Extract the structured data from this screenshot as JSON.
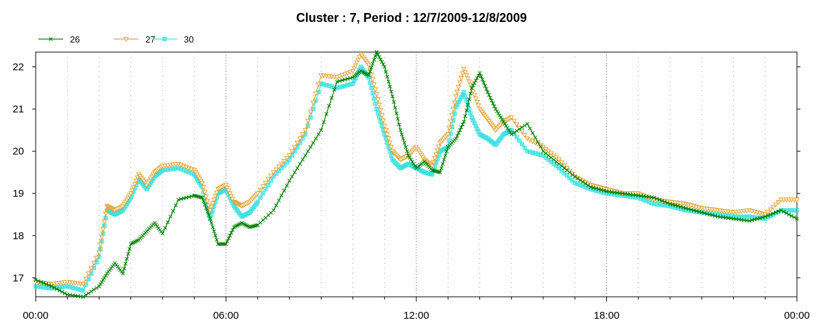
{
  "chart_data": {
    "type": "line",
    "title": "Cluster : 7, Period : 12/7/2009-12/8/2009",
    "xlabel": "",
    "ylabel": "",
    "x_unit": "hours",
    "xlim": [
      0,
      24
    ],
    "ylim": [
      16.55,
      22.35
    ],
    "x_ticks": [
      {
        "value": 0,
        "label": "00:00"
      },
      {
        "value": 6,
        "label": "06:00"
      },
      {
        "value": 12,
        "label": "12:00"
      },
      {
        "value": 18,
        "label": "18:00"
      },
      {
        "value": 24,
        "label": "00:00"
      }
    ],
    "y_ticks": [
      17,
      18,
      19,
      20,
      21,
      22
    ],
    "grid": "vertical dotted lines at every hour, denser at 6-hour marks",
    "legend_position": "top-left",
    "x": [
      0,
      0.5,
      1,
      1.5,
      2,
      2.25,
      2.5,
      2.75,
      3,
      3.25,
      3.5,
      3.75,
      4,
      4.5,
      5,
      5.25,
      5.5,
      5.75,
      6,
      6.25,
      6.5,
      6.75,
      7,
      7.5,
      8,
      8.5,
      9,
      9.5,
      10,
      10.25,
      10.5,
      10.75,
      11,
      11.25,
      11.5,
      11.75,
      12,
      12.25,
      12.5,
      12.75,
      13,
      13.25,
      13.5,
      13.75,
      14,
      14.25,
      14.5,
      14.75,
      15,
      15.5,
      16,
      16.5,
      17,
      17.5,
      18,
      18.5,
      19,
      19.5,
      20,
      20.5,
      21,
      21.5,
      22,
      22.5,
      23,
      23.5,
      24
    ],
    "series": [
      {
        "name": "26",
        "color": "#008000",
        "marker": "x",
        "values": [
          16.95,
          16.8,
          16.6,
          16.55,
          16.8,
          17.1,
          17.35,
          17.1,
          17.8,
          17.9,
          18.1,
          18.3,
          18.05,
          18.85,
          18.95,
          18.9,
          18.4,
          17.8,
          17.8,
          18.2,
          18.3,
          18.2,
          18.25,
          18.6,
          19.3,
          19.9,
          20.5,
          21.65,
          21.75,
          21.9,
          21.8,
          22.35,
          22.0,
          21.3,
          20.5,
          19.9,
          19.6,
          19.75,
          19.55,
          19.5,
          20.1,
          20.3,
          20.7,
          21.5,
          21.85,
          21.4,
          21.0,
          20.7,
          20.4,
          20.65,
          20.0,
          19.7,
          19.4,
          19.15,
          19.05,
          19.0,
          18.95,
          18.9,
          18.75,
          18.65,
          18.55,
          18.45,
          18.4,
          18.35,
          18.45,
          18.6,
          18.4
        ]
      },
      {
        "name": "27",
        "color": "#E0A030",
        "marker": "triangle-down",
        "values": [
          16.9,
          16.85,
          16.9,
          16.85,
          17.6,
          18.7,
          18.6,
          18.7,
          19.0,
          19.45,
          19.2,
          19.5,
          19.65,
          19.7,
          19.55,
          19.25,
          18.6,
          19.1,
          19.2,
          18.8,
          18.7,
          18.8,
          19.0,
          19.5,
          19.9,
          20.5,
          21.8,
          21.75,
          21.9,
          22.3,
          22.05,
          21.35,
          20.6,
          20.0,
          19.8,
          19.9,
          20.1,
          19.8,
          19.65,
          20.2,
          20.4,
          21.3,
          21.95,
          21.5,
          21.0,
          20.75,
          20.5,
          20.7,
          20.8,
          20.3,
          20.1,
          19.8,
          19.4,
          19.2,
          19.1,
          19.0,
          19.0,
          18.85,
          18.8,
          18.75,
          18.65,
          18.6,
          18.55,
          18.6,
          18.5,
          18.85,
          18.85
        ]
      },
      {
        "name": "30",
        "color": "#40E0E0",
        "marker": "square",
        "values": [
          16.8,
          16.75,
          16.8,
          16.7,
          17.5,
          18.6,
          18.5,
          18.6,
          18.9,
          19.35,
          19.1,
          19.4,
          19.55,
          19.6,
          19.45,
          19.15,
          18.4,
          19.0,
          19.1,
          18.7,
          18.45,
          18.55,
          18.8,
          19.4,
          19.8,
          20.4,
          21.6,
          21.5,
          21.6,
          22.0,
          21.75,
          21.0,
          20.4,
          19.8,
          19.6,
          19.7,
          19.6,
          19.5,
          19.45,
          20.0,
          20.1,
          21.05,
          21.4,
          20.8,
          20.4,
          20.3,
          20.15,
          20.4,
          20.5,
          20.0,
          19.9,
          19.6,
          19.25,
          19.1,
          19.0,
          18.95,
          18.9,
          18.75,
          18.7,
          18.6,
          18.55,
          18.5,
          18.45,
          18.45,
          18.4,
          18.6,
          18.6
        ]
      }
    ]
  }
}
